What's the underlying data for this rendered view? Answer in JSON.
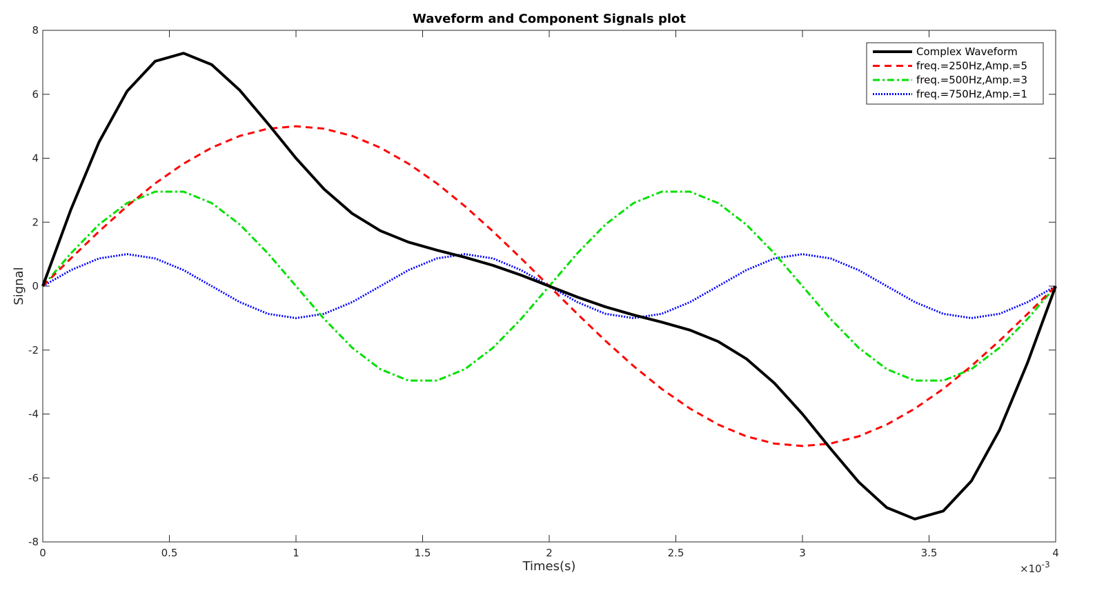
{
  "chart_data": {
    "type": "line",
    "title": "Waveform and Component Signals plot",
    "xlabel": "Times(s)",
    "ylabel": "Signal",
    "x_exponent_label": "×10",
    "x_exponent_power": "-3",
    "xlim": [
      0,
      4
    ],
    "ylim": [
      -8,
      8
    ],
    "xticks": [
      "0",
      "0.5",
      "1",
      "1.5",
      "2",
      "2.5",
      "3",
      "3.5",
      "4"
    ],
    "yticks": [
      "8",
      "6",
      "4",
      "2",
      "0",
      "-2",
      "-4",
      "-6",
      "-8"
    ],
    "grid": false,
    "legend_position": "top-right",
    "x": [
      0,
      0.111,
      0.222,
      0.333,
      0.444,
      0.556,
      0.667,
      0.778,
      0.889,
      1,
      1.111,
      1.222,
      1.333,
      1.444,
      1.556,
      1.667,
      1.778,
      1.889,
      2,
      2.111,
      2.222,
      2.333,
      2.444,
      2.556,
      2.667,
      2.778,
      2.889,
      3,
      3.111,
      3.222,
      3.333,
      3.444,
      3.556,
      3.667,
      3.778,
      3.889,
      4
    ],
    "series": [
      {
        "name": "Complex Waveform",
        "color": "#000000",
        "dash": "",
        "width": 4,
        "values": [
          0,
          2.394,
          4.504,
          6.098,
          7.034,
          7.284,
          6.928,
          6.126,
          5.084,
          4,
          3.032,
          2.27,
          1.732,
          1.376,
          1.126,
          0.902,
          0.648,
          0.342,
          0,
          -0.342,
          -0.648,
          -0.902,
          -1.126,
          -1.376,
          -1.732,
          -2.27,
          -3.032,
          -4,
          -5.084,
          -6.126,
          -6.928,
          -7.284,
          -7.034,
          -6.098,
          -4.504,
          -2.394,
          0
        ]
      },
      {
        "name": "freq.=250Hz,Amp.=5",
        "color": "#ff0000",
        "dash": "10,7",
        "width": 3,
        "values": [
          0,
          0.868,
          1.71,
          2.5,
          3.214,
          3.83,
          4.33,
          4.698,
          4.924,
          5,
          4.924,
          4.698,
          4.33,
          3.83,
          3.214,
          2.5,
          1.71,
          0.868,
          0,
          -0.868,
          -1.71,
          -2.5,
          -3.214,
          -3.83,
          -4.33,
          -4.698,
          -4.924,
          -5,
          -4.924,
          -4.698,
          -4.33,
          -3.83,
          -3.214,
          -2.5,
          -1.71,
          -0.868,
          0
        ]
      },
      {
        "name": "freq.=500Hz,Amp.=3",
        "color": "#00e000",
        "dash": "10,4,3,4",
        "width": 3,
        "values": [
          0,
          1.026,
          1.928,
          2.598,
          2.954,
          2.954,
          2.598,
          1.928,
          1.026,
          0,
          -1.026,
          -1.928,
          -2.598,
          -2.954,
          -2.954,
          -2.598,
          -1.928,
          -1.026,
          0,
          1.026,
          1.928,
          2.598,
          2.954,
          2.954,
          2.598,
          1.928,
          1.026,
          0,
          -1.026,
          -1.928,
          -2.598,
          -2.954,
          -2.954,
          -2.598,
          -1.928,
          -1.026,
          0
        ]
      },
      {
        "name": "freq.=750Hz,Amp.=1",
        "color": "#0000ff",
        "dash": "2,2",
        "width": 3,
        "values": [
          0,
          0.5,
          0.866,
          1,
          0.866,
          0.5,
          0,
          -0.5,
          -0.866,
          -1,
          -0.866,
          -0.5,
          0,
          0.5,
          0.866,
          1,
          0.866,
          0.5,
          0,
          -0.5,
          -0.866,
          -1,
          -0.866,
          -0.5,
          0,
          0.5,
          0.866,
          1,
          0.866,
          0.5,
          0,
          -0.5,
          -0.866,
          -1,
          -0.866,
          -0.5,
          0
        ]
      }
    ]
  }
}
